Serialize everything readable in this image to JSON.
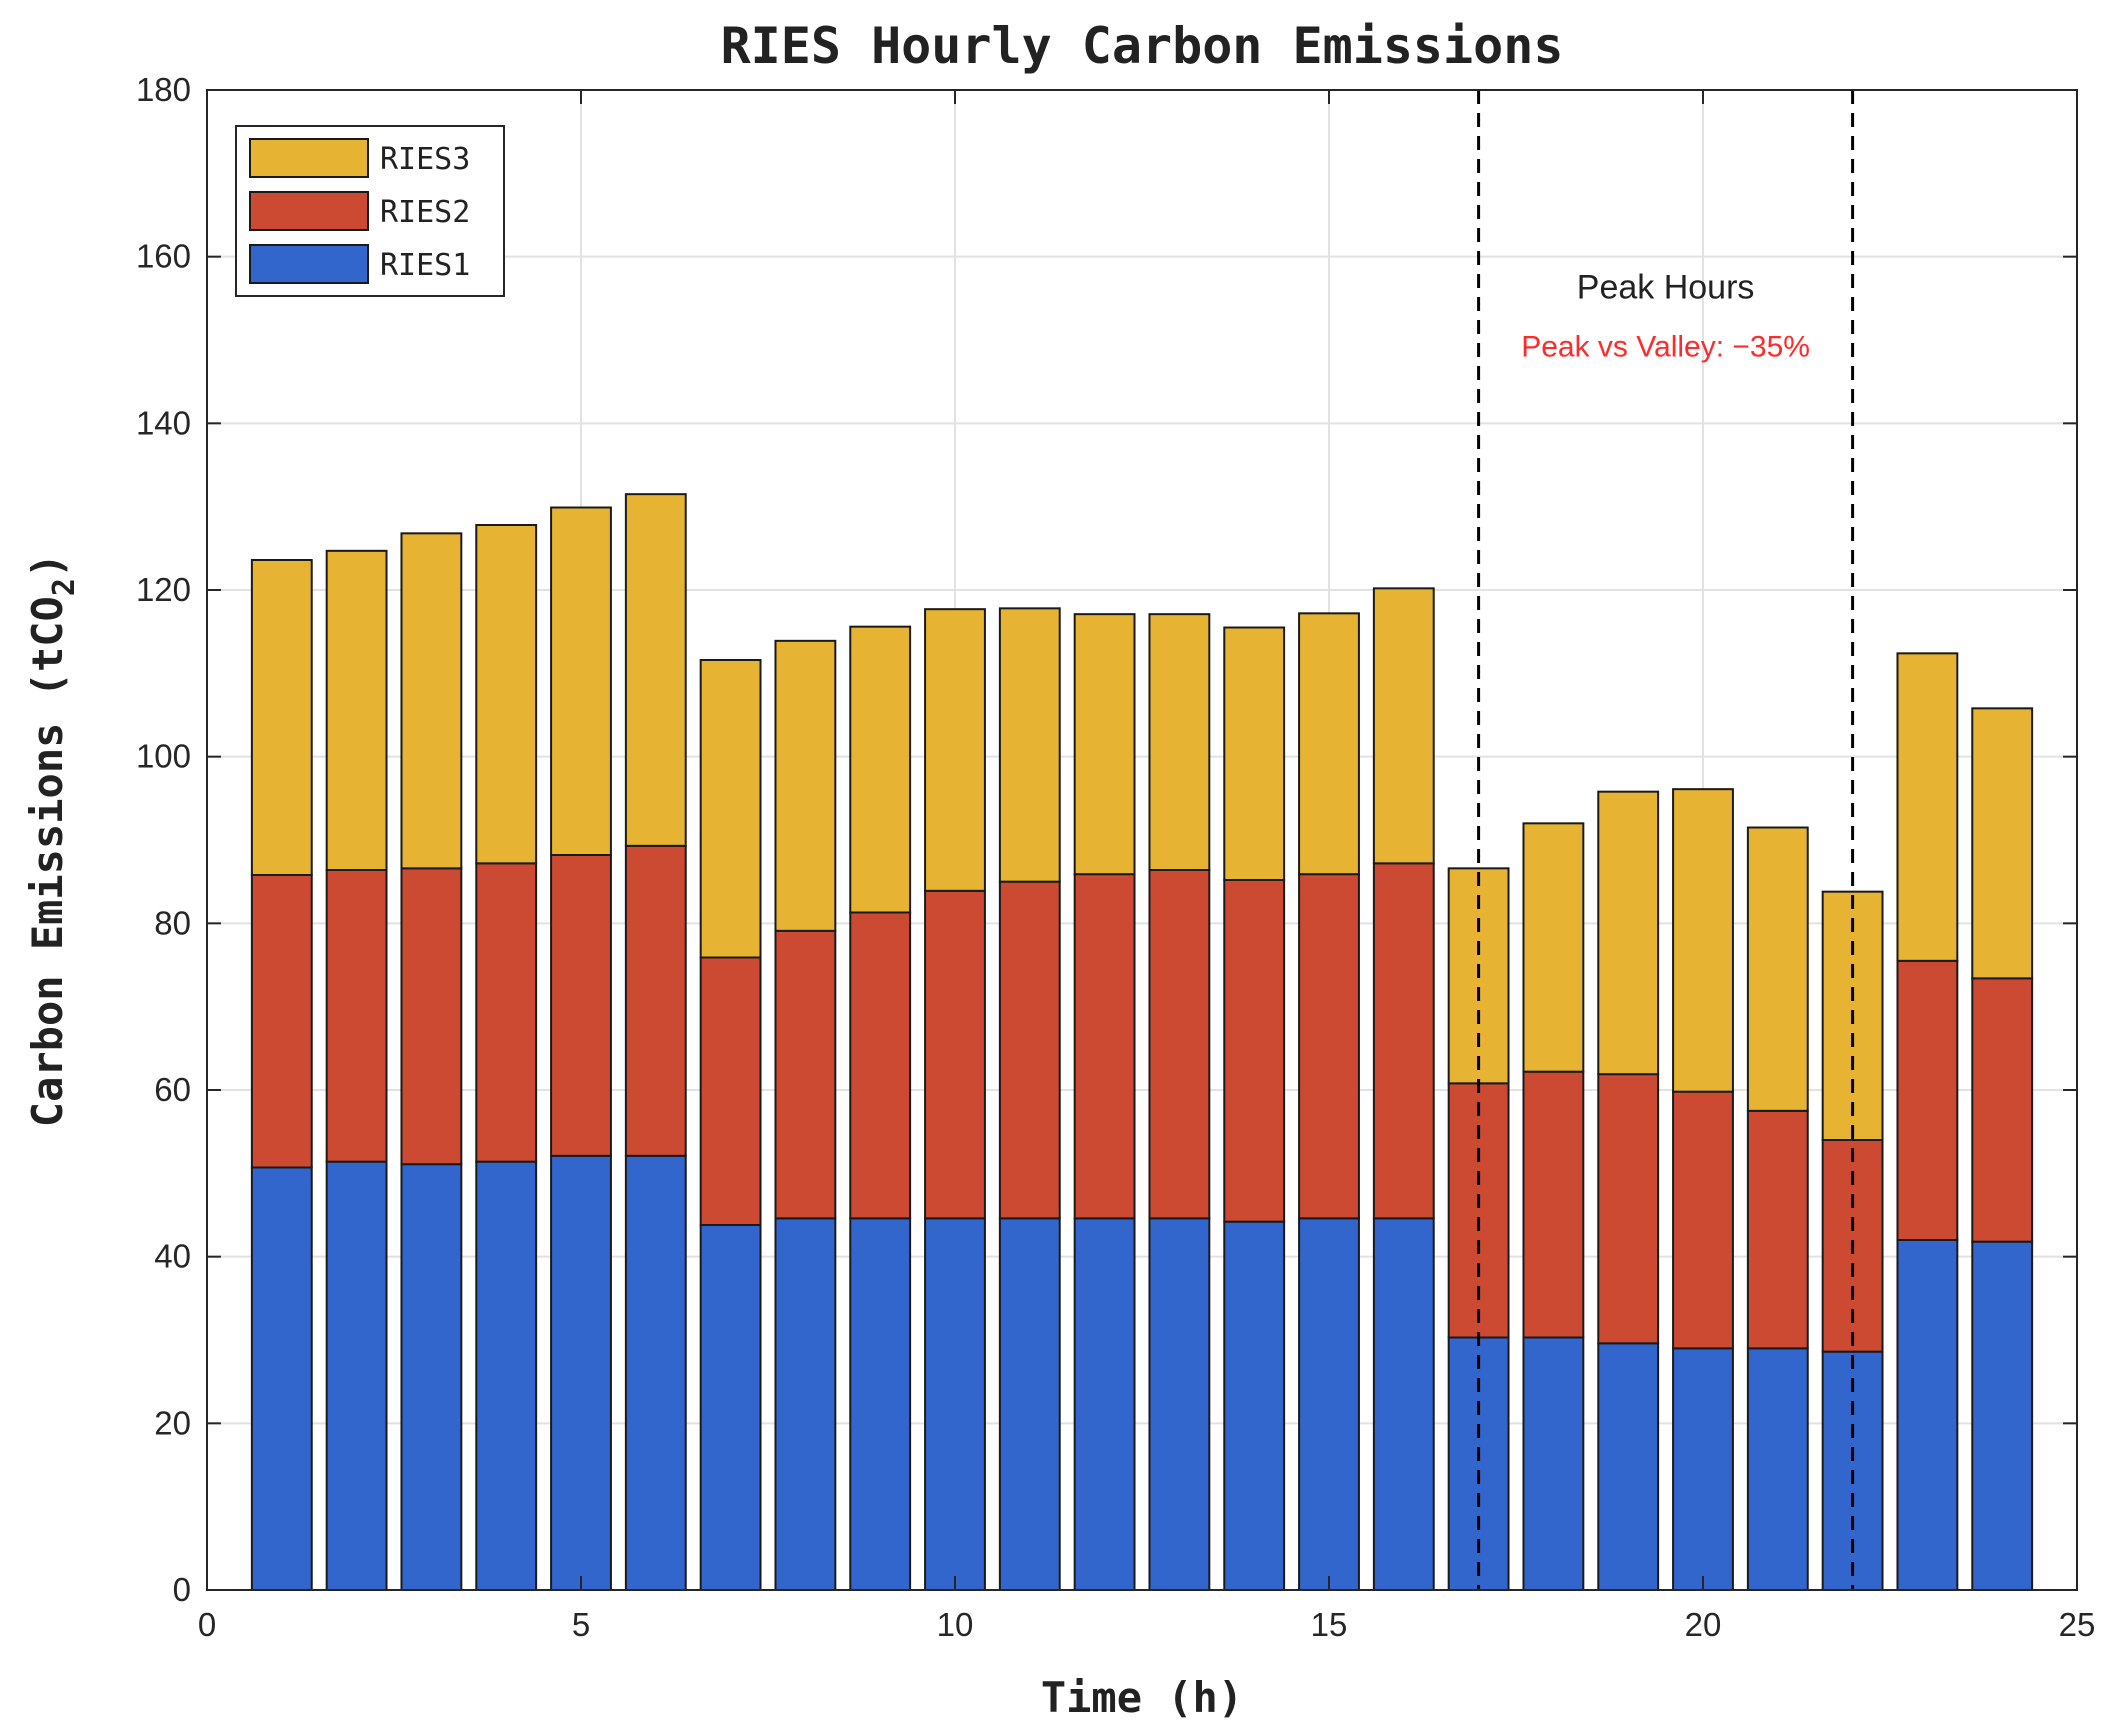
{
  "chart_data": {
    "type": "bar",
    "stacked": true,
    "title": "RIES Hourly Carbon Emissions",
    "xlabel": "Time (h)",
    "ylabel_main": "Carbon Emissions (tCO",
    "ylabel_sub": "2",
    "ylabel_close": ")",
    "xlim": [
      0,
      25
    ],
    "ylim": [
      0,
      180
    ],
    "xticks": [
      "0",
      "5",
      "10",
      "15",
      "20",
      "25"
    ],
    "yticks": [
      "0",
      "20",
      "40",
      "60",
      "80",
      "100",
      "120",
      "140",
      "160",
      "180"
    ],
    "grid": true,
    "x": [
      1,
      2,
      3,
      4,
      5,
      6,
      7,
      8,
      9,
      10,
      11,
      12,
      13,
      14,
      15,
      16,
      17,
      18,
      19,
      20,
      21,
      22,
      23,
      24
    ],
    "series": [
      {
        "name": "RIES1",
        "color": "#3266CC",
        "values": [
          50.7,
          51.4,
          51.1,
          51.4,
          52.1,
          52.1,
          43.8,
          44.6,
          44.6,
          44.6,
          44.6,
          44.6,
          44.6,
          44.2,
          44.6,
          44.6,
          30.3,
          30.3,
          29.6,
          29.0,
          29.0,
          28.6,
          42.0,
          41.8
        ]
      },
      {
        "name": "RIES2",
        "color": "#CC4A32",
        "values": [
          35.1,
          35.0,
          35.5,
          35.8,
          36.1,
          37.2,
          32.1,
          34.5,
          36.7,
          39.3,
          40.4,
          41.3,
          41.8,
          41.0,
          41.3,
          42.6,
          30.5,
          31.9,
          32.3,
          30.8,
          28.5,
          25.4,
          33.5,
          31.6
        ]
      },
      {
        "name": "RIES3",
        "color": "#E6B332",
        "values": [
          37.8,
          38.3,
          40.2,
          40.6,
          41.7,
          42.2,
          35.7,
          34.8,
          34.3,
          33.8,
          32.8,
          31.2,
          30.7,
          30.3,
          31.3,
          33.0,
          25.8,
          29.8,
          33.9,
          36.3,
          34.0,
          29.8,
          36.9,
          32.4
        ]
      }
    ],
    "legend": {
      "position": "top-left",
      "order": [
        "RIES3",
        "RIES2",
        "RIES1"
      ]
    },
    "vlines": [
      17,
      22
    ],
    "annotations": [
      {
        "text": "Peak Hours",
        "x": 19.5,
        "y": 155,
        "color": "#222222",
        "size": "normal"
      },
      {
        "text": "Peak vs Valley: −35%",
        "x": 19.5,
        "y": 148,
        "color": "#FF2A2A",
        "size": "small"
      }
    ]
  }
}
